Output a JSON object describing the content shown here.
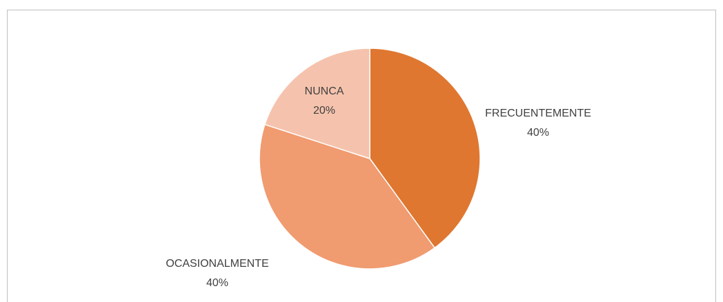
{
  "chart_data": {
    "type": "pie",
    "categories": [
      "FRECUENTEMENTE",
      "OCASIONALMENTE",
      "NUNCA"
    ],
    "values": [
      40,
      40,
      20
    ],
    "value_labels": [
      "40%",
      "40%",
      "20%"
    ],
    "colors": [
      "#DF7730",
      "#F09B70",
      "#F5C3AD"
    ]
  }
}
